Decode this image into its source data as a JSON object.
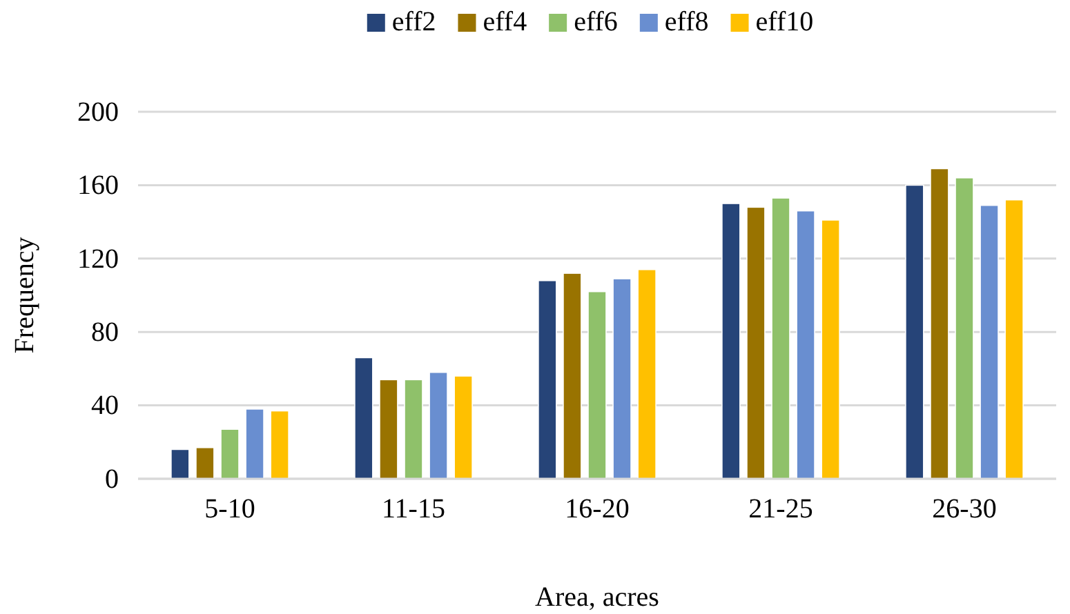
{
  "chart_data": {
    "type": "bar",
    "xlabel": "Area, acres",
    "ylabel": "Frequency",
    "categories": [
      "5-10",
      "11-15",
      "16-20",
      "21-25",
      "26-30"
    ],
    "series": [
      {
        "name": "eff2",
        "color": "#264478",
        "values": [
          16,
          66,
          108,
          150,
          160
        ]
      },
      {
        "name": "eff4",
        "color": "#997300",
        "values": [
          17,
          54,
          112,
          148,
          169
        ]
      },
      {
        "name": "eff6",
        "color": "#8fc16a",
        "values": [
          27,
          54,
          102,
          153,
          164
        ]
      },
      {
        "name": "eff8",
        "color": "#698ed0",
        "values": [
          38,
          58,
          109,
          146,
          149
        ]
      },
      {
        "name": "eff10",
        "color": "#ffc000",
        "values": [
          37,
          56,
          114,
          141,
          152
        ]
      }
    ],
    "ylim": [
      0,
      200
    ],
    "yticks": [
      0,
      40,
      80,
      120,
      160,
      200
    ],
    "grid": "y",
    "legend": "top"
  }
}
